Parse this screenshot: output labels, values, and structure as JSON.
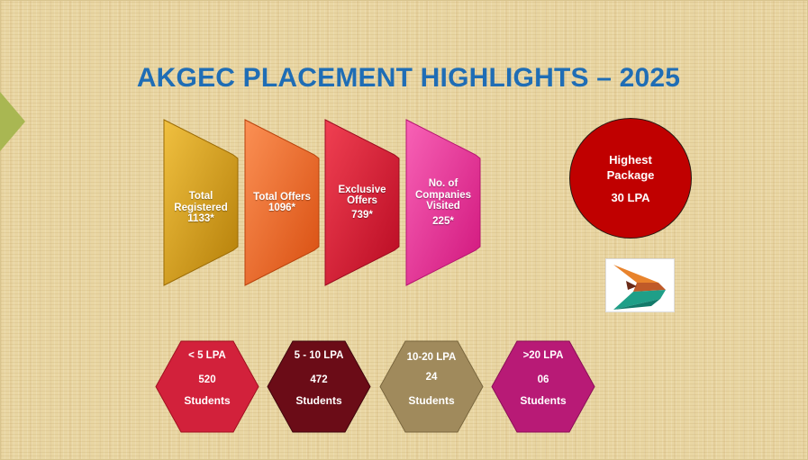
{
  "title": "AKGEC PLACEMENT HIGHLIGHTS – 2025",
  "stats": [
    {
      "lines": [
        "Total",
        "Registered",
        "1133*"
      ],
      "color_top": "#e8b020",
      "color_bottom": "#c38a0c"
    },
    {
      "lines": [
        "Total Offers",
        "1096*"
      ],
      "color_top": "#f77e3c",
      "color_bottom": "#e05a18"
    },
    {
      "lines": [
        "Exclusive",
        "Offers",
        "739*"
      ],
      "color_top": "#ea2a40",
      "color_bottom": "#c9102a"
    },
    {
      "lines": [
        "No. of",
        "Companies",
        "Visited",
        "225*"
      ],
      "color_top": "#f44ca6",
      "color_bottom": "#de1f88"
    }
  ],
  "highest_package": {
    "line1": "Highest",
    "line2": "Package",
    "value": "30 LPA"
  },
  "brackets": [
    {
      "range": "< 5 LPA",
      "count": "520",
      "unit": "Students",
      "color": "#d2213b"
    },
    {
      "range": "5 - 10 LPA",
      "count": "472",
      "unit": "Students",
      "color": "#6b0c17"
    },
    {
      "range": "10-20 LPA",
      "count": "24",
      "unit": "Students",
      "color": "#a08a5c"
    },
    {
      "range": ">20 LPA",
      "count": "06",
      "unit": "Students",
      "color": "#b81a76"
    }
  ]
}
